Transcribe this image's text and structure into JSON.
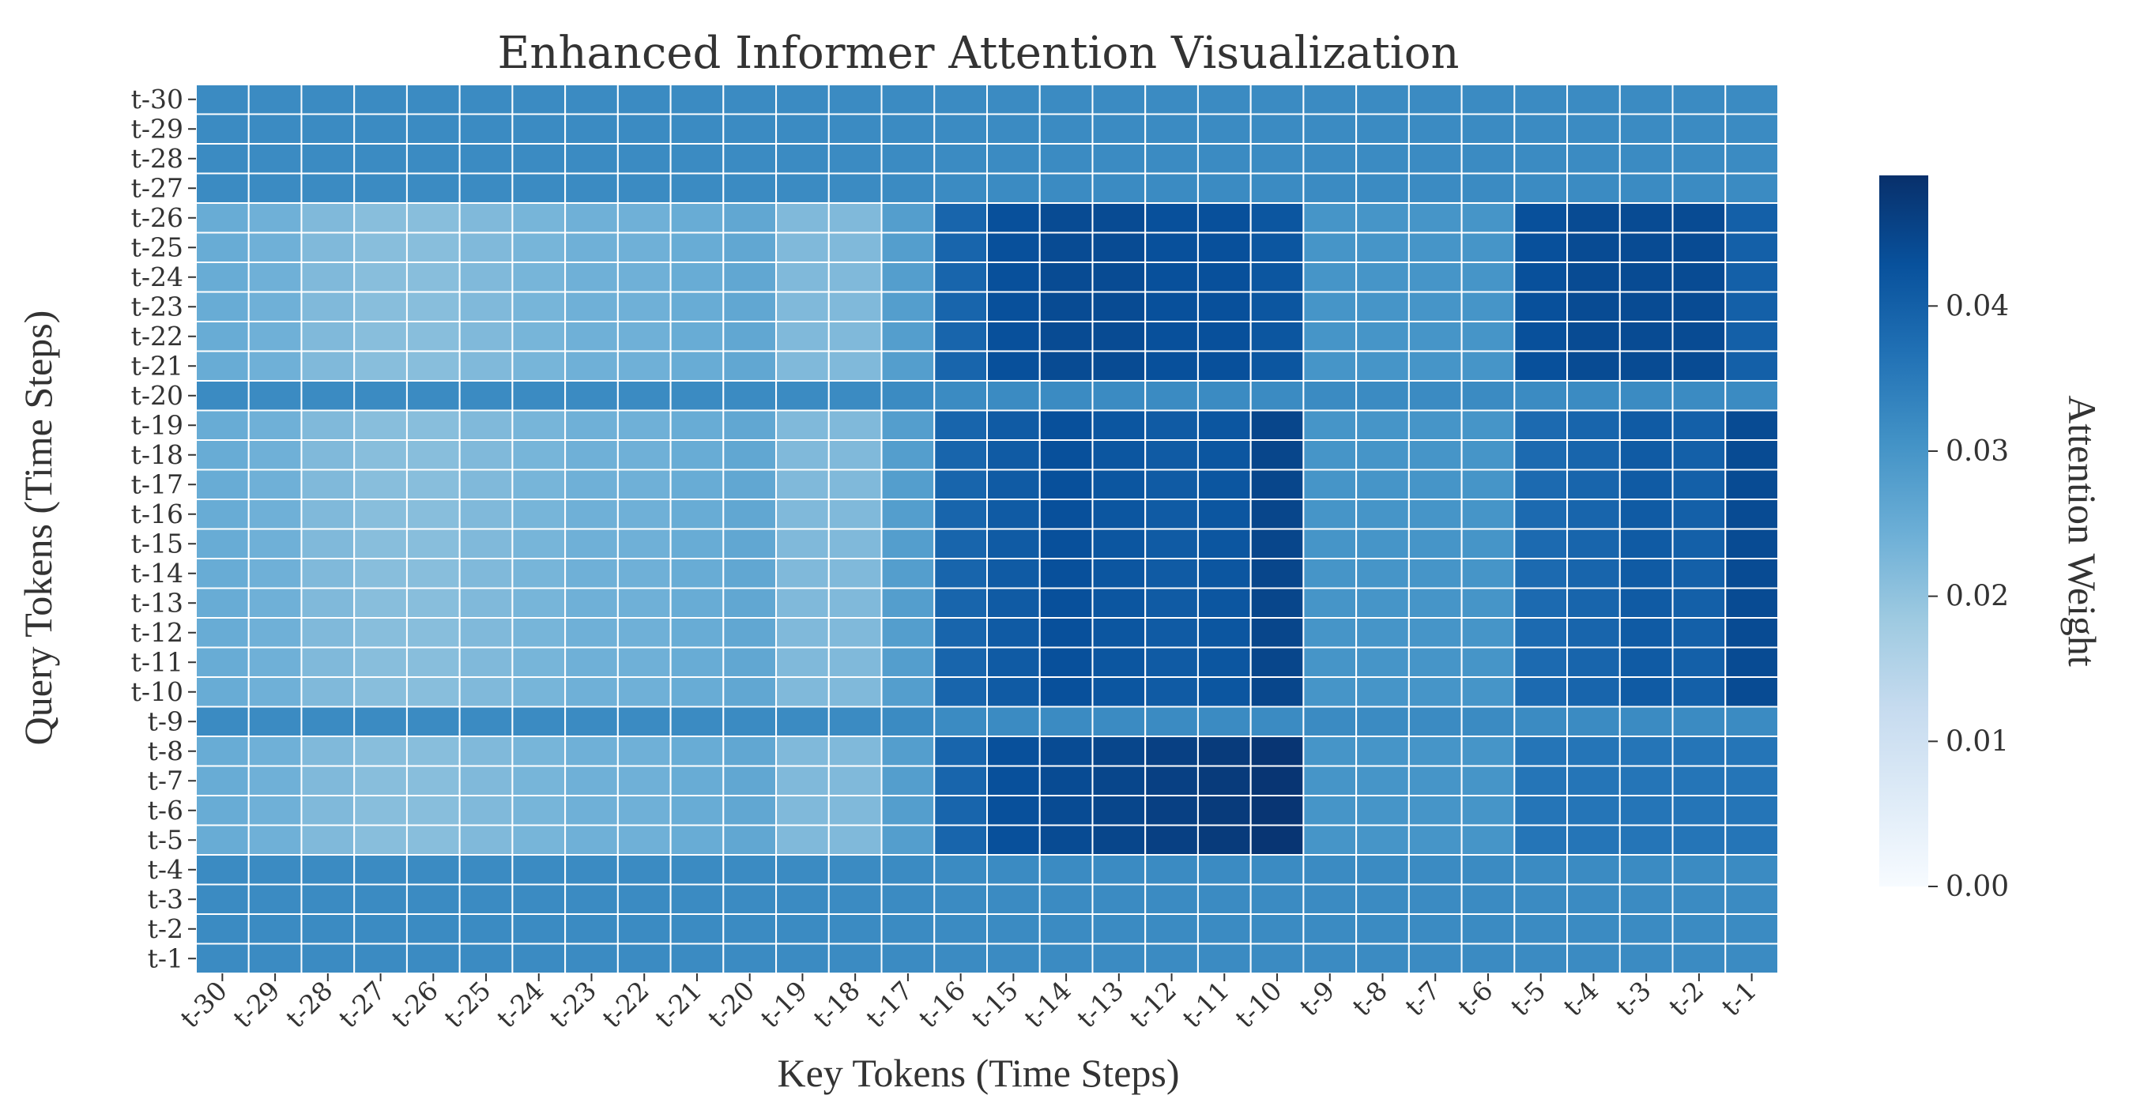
{
  "chart_data": {
    "type": "heatmap",
    "title": "Enhanced Informer Attention Visualization",
    "xlabel": "Key Tokens (Time Steps)",
    "ylabel": "Query Tokens (Time Steps)",
    "x_categories": [
      "t-30",
      "t-29",
      "t-28",
      "t-27",
      "t-26",
      "t-25",
      "t-24",
      "t-23",
      "t-22",
      "t-21",
      "t-20",
      "t-19",
      "t-18",
      "t-17",
      "t-16",
      "t-15",
      "t-14",
      "t-13",
      "t-12",
      "t-11",
      "t-10",
      "t-9",
      "t-8",
      "t-7",
      "t-6",
      "t-5",
      "t-4",
      "t-3",
      "t-2",
      "t-1"
    ],
    "y_categories": [
      "t-30",
      "t-29",
      "t-28",
      "t-27",
      "t-26",
      "t-25",
      "t-24",
      "t-23",
      "t-22",
      "t-21",
      "t-20",
      "t-19",
      "t-18",
      "t-17",
      "t-16",
      "t-15",
      "t-14",
      "t-13",
      "t-12",
      "t-11",
      "t-10",
      "t-9",
      "t-8",
      "t-7",
      "t-6",
      "t-5",
      "t-4",
      "t-3",
      "t-2",
      "t-1"
    ],
    "values": [
      [
        0.032,
        0.032,
        0.032,
        0.032,
        0.032,
        0.032,
        0.032,
        0.032,
        0.032,
        0.032,
        0.032,
        0.032,
        0.032,
        0.032,
        0.032,
        0.032,
        0.032,
        0.032,
        0.032,
        0.032,
        0.032,
        0.032,
        0.032,
        0.032,
        0.032,
        0.032,
        0.032,
        0.032,
        0.032,
        0.032
      ],
      [
        0.032,
        0.032,
        0.032,
        0.032,
        0.032,
        0.032,
        0.032,
        0.032,
        0.032,
        0.032,
        0.032,
        0.032,
        0.032,
        0.032,
        0.032,
        0.032,
        0.032,
        0.032,
        0.032,
        0.032,
        0.032,
        0.032,
        0.032,
        0.032,
        0.032,
        0.032,
        0.032,
        0.032,
        0.032,
        0.032
      ],
      [
        0.032,
        0.032,
        0.032,
        0.032,
        0.032,
        0.032,
        0.032,
        0.032,
        0.032,
        0.032,
        0.032,
        0.032,
        0.032,
        0.032,
        0.032,
        0.032,
        0.032,
        0.032,
        0.032,
        0.032,
        0.032,
        0.032,
        0.032,
        0.032,
        0.032,
        0.032,
        0.032,
        0.032,
        0.032,
        0.032
      ],
      [
        0.032,
        0.032,
        0.032,
        0.032,
        0.032,
        0.032,
        0.032,
        0.032,
        0.032,
        0.032,
        0.032,
        0.032,
        0.032,
        0.032,
        0.032,
        0.032,
        0.032,
        0.032,
        0.032,
        0.032,
        0.032,
        0.032,
        0.032,
        0.032,
        0.032,
        0.032,
        0.032,
        0.032,
        0.032,
        0.032
      ],
      [
        0.025,
        0.024,
        0.022,
        0.021,
        0.021,
        0.022,
        0.023,
        0.024,
        0.024,
        0.025,
        0.026,
        0.022,
        0.022,
        0.028,
        0.039,
        0.043,
        0.044,
        0.044,
        0.043,
        0.043,
        0.042,
        0.03,
        0.03,
        0.03,
        0.03,
        0.043,
        0.044,
        0.044,
        0.044,
        0.04
      ],
      [
        0.025,
        0.024,
        0.022,
        0.021,
        0.021,
        0.022,
        0.023,
        0.024,
        0.024,
        0.025,
        0.026,
        0.022,
        0.022,
        0.028,
        0.039,
        0.043,
        0.044,
        0.044,
        0.043,
        0.043,
        0.042,
        0.03,
        0.03,
        0.03,
        0.03,
        0.043,
        0.044,
        0.044,
        0.044,
        0.04
      ],
      [
        0.025,
        0.024,
        0.022,
        0.021,
        0.021,
        0.022,
        0.023,
        0.024,
        0.024,
        0.025,
        0.026,
        0.022,
        0.022,
        0.028,
        0.039,
        0.043,
        0.044,
        0.044,
        0.043,
        0.043,
        0.042,
        0.03,
        0.03,
        0.03,
        0.03,
        0.043,
        0.044,
        0.044,
        0.044,
        0.04
      ],
      [
        0.025,
        0.024,
        0.022,
        0.021,
        0.021,
        0.022,
        0.023,
        0.024,
        0.024,
        0.025,
        0.026,
        0.022,
        0.022,
        0.028,
        0.039,
        0.043,
        0.044,
        0.044,
        0.043,
        0.043,
        0.042,
        0.03,
        0.03,
        0.03,
        0.03,
        0.043,
        0.044,
        0.044,
        0.044,
        0.04
      ],
      [
        0.025,
        0.024,
        0.022,
        0.021,
        0.021,
        0.022,
        0.023,
        0.024,
        0.024,
        0.025,
        0.026,
        0.022,
        0.022,
        0.028,
        0.039,
        0.043,
        0.044,
        0.044,
        0.043,
        0.043,
        0.042,
        0.03,
        0.03,
        0.03,
        0.03,
        0.043,
        0.044,
        0.044,
        0.044,
        0.04
      ],
      [
        0.025,
        0.024,
        0.022,
        0.021,
        0.021,
        0.022,
        0.023,
        0.024,
        0.024,
        0.025,
        0.026,
        0.022,
        0.022,
        0.028,
        0.039,
        0.043,
        0.044,
        0.044,
        0.043,
        0.043,
        0.042,
        0.03,
        0.03,
        0.03,
        0.03,
        0.043,
        0.044,
        0.044,
        0.044,
        0.04
      ],
      [
        0.032,
        0.032,
        0.032,
        0.032,
        0.032,
        0.032,
        0.032,
        0.032,
        0.032,
        0.032,
        0.032,
        0.032,
        0.032,
        0.032,
        0.032,
        0.032,
        0.032,
        0.032,
        0.032,
        0.032,
        0.032,
        0.032,
        0.032,
        0.032,
        0.032,
        0.032,
        0.032,
        0.032,
        0.032,
        0.032
      ],
      [
        0.025,
        0.024,
        0.022,
        0.021,
        0.021,
        0.022,
        0.023,
        0.024,
        0.024,
        0.025,
        0.026,
        0.022,
        0.022,
        0.028,
        0.039,
        0.041,
        0.043,
        0.042,
        0.041,
        0.042,
        0.045,
        0.03,
        0.03,
        0.03,
        0.03,
        0.038,
        0.039,
        0.041,
        0.04,
        0.044
      ],
      [
        0.025,
        0.024,
        0.022,
        0.021,
        0.021,
        0.022,
        0.023,
        0.024,
        0.024,
        0.025,
        0.026,
        0.022,
        0.022,
        0.028,
        0.039,
        0.041,
        0.043,
        0.042,
        0.041,
        0.042,
        0.045,
        0.03,
        0.03,
        0.03,
        0.03,
        0.038,
        0.039,
        0.041,
        0.04,
        0.044
      ],
      [
        0.025,
        0.024,
        0.022,
        0.021,
        0.021,
        0.022,
        0.023,
        0.024,
        0.024,
        0.025,
        0.026,
        0.022,
        0.022,
        0.028,
        0.039,
        0.041,
        0.043,
        0.042,
        0.041,
        0.042,
        0.045,
        0.03,
        0.03,
        0.03,
        0.03,
        0.038,
        0.039,
        0.041,
        0.04,
        0.044
      ],
      [
        0.025,
        0.024,
        0.022,
        0.021,
        0.021,
        0.022,
        0.023,
        0.024,
        0.024,
        0.025,
        0.026,
        0.022,
        0.022,
        0.028,
        0.039,
        0.041,
        0.043,
        0.042,
        0.041,
        0.042,
        0.045,
        0.03,
        0.03,
        0.03,
        0.03,
        0.038,
        0.039,
        0.041,
        0.04,
        0.044
      ],
      [
        0.025,
        0.024,
        0.022,
        0.021,
        0.021,
        0.022,
        0.023,
        0.024,
        0.024,
        0.025,
        0.026,
        0.022,
        0.022,
        0.028,
        0.039,
        0.041,
        0.043,
        0.042,
        0.041,
        0.042,
        0.045,
        0.03,
        0.03,
        0.03,
        0.03,
        0.038,
        0.039,
        0.041,
        0.04,
        0.044
      ],
      [
        0.025,
        0.024,
        0.022,
        0.021,
        0.021,
        0.022,
        0.023,
        0.024,
        0.024,
        0.025,
        0.026,
        0.022,
        0.022,
        0.028,
        0.039,
        0.041,
        0.043,
        0.042,
        0.041,
        0.042,
        0.045,
        0.03,
        0.03,
        0.03,
        0.03,
        0.038,
        0.039,
        0.041,
        0.04,
        0.044
      ],
      [
        0.025,
        0.024,
        0.022,
        0.021,
        0.021,
        0.022,
        0.023,
        0.024,
        0.024,
        0.025,
        0.026,
        0.022,
        0.022,
        0.028,
        0.039,
        0.041,
        0.043,
        0.042,
        0.041,
        0.042,
        0.045,
        0.03,
        0.03,
        0.03,
        0.03,
        0.038,
        0.039,
        0.041,
        0.04,
        0.044
      ],
      [
        0.025,
        0.024,
        0.022,
        0.021,
        0.021,
        0.022,
        0.023,
        0.024,
        0.024,
        0.025,
        0.026,
        0.022,
        0.022,
        0.028,
        0.039,
        0.041,
        0.043,
        0.042,
        0.041,
        0.042,
        0.045,
        0.03,
        0.03,
        0.03,
        0.03,
        0.038,
        0.039,
        0.041,
        0.04,
        0.044
      ],
      [
        0.025,
        0.024,
        0.022,
        0.021,
        0.021,
        0.022,
        0.023,
        0.024,
        0.024,
        0.025,
        0.026,
        0.022,
        0.022,
        0.028,
        0.039,
        0.041,
        0.043,
        0.042,
        0.041,
        0.042,
        0.045,
        0.03,
        0.03,
        0.03,
        0.03,
        0.038,
        0.039,
        0.041,
        0.04,
        0.044
      ],
      [
        0.025,
        0.024,
        0.022,
        0.021,
        0.021,
        0.022,
        0.023,
        0.024,
        0.024,
        0.025,
        0.026,
        0.022,
        0.022,
        0.028,
        0.039,
        0.041,
        0.043,
        0.042,
        0.041,
        0.042,
        0.045,
        0.03,
        0.03,
        0.03,
        0.03,
        0.038,
        0.039,
        0.041,
        0.04,
        0.044
      ],
      [
        0.032,
        0.032,
        0.032,
        0.032,
        0.032,
        0.032,
        0.032,
        0.032,
        0.032,
        0.032,
        0.032,
        0.032,
        0.032,
        0.032,
        0.032,
        0.032,
        0.032,
        0.032,
        0.032,
        0.032,
        0.032,
        0.032,
        0.032,
        0.032,
        0.032,
        0.032,
        0.032,
        0.032,
        0.032,
        0.032
      ],
      [
        0.025,
        0.024,
        0.022,
        0.021,
        0.021,
        0.022,
        0.023,
        0.024,
        0.024,
        0.025,
        0.026,
        0.022,
        0.022,
        0.028,
        0.039,
        0.043,
        0.044,
        0.045,
        0.046,
        0.047,
        0.048,
        0.03,
        0.03,
        0.03,
        0.03,
        0.036,
        0.036,
        0.036,
        0.036,
        0.036
      ],
      [
        0.025,
        0.024,
        0.022,
        0.021,
        0.021,
        0.022,
        0.023,
        0.024,
        0.024,
        0.025,
        0.026,
        0.022,
        0.022,
        0.028,
        0.039,
        0.043,
        0.044,
        0.045,
        0.046,
        0.047,
        0.048,
        0.03,
        0.03,
        0.03,
        0.03,
        0.036,
        0.036,
        0.036,
        0.036,
        0.036
      ],
      [
        0.025,
        0.024,
        0.022,
        0.021,
        0.021,
        0.022,
        0.023,
        0.024,
        0.024,
        0.025,
        0.026,
        0.022,
        0.022,
        0.028,
        0.039,
        0.043,
        0.044,
        0.045,
        0.046,
        0.047,
        0.048,
        0.03,
        0.03,
        0.03,
        0.03,
        0.036,
        0.036,
        0.036,
        0.036,
        0.036
      ],
      [
        0.025,
        0.024,
        0.022,
        0.021,
        0.021,
        0.022,
        0.023,
        0.024,
        0.024,
        0.025,
        0.026,
        0.022,
        0.022,
        0.028,
        0.039,
        0.043,
        0.044,
        0.045,
        0.046,
        0.047,
        0.048,
        0.03,
        0.03,
        0.03,
        0.03,
        0.036,
        0.036,
        0.036,
        0.036,
        0.036
      ],
      [
        0.032,
        0.032,
        0.032,
        0.032,
        0.032,
        0.032,
        0.032,
        0.032,
        0.032,
        0.032,
        0.032,
        0.032,
        0.032,
        0.032,
        0.032,
        0.032,
        0.032,
        0.032,
        0.032,
        0.032,
        0.032,
        0.032,
        0.032,
        0.032,
        0.032,
        0.032,
        0.032,
        0.032,
        0.032,
        0.032
      ],
      [
        0.032,
        0.032,
        0.032,
        0.032,
        0.032,
        0.032,
        0.032,
        0.032,
        0.032,
        0.032,
        0.032,
        0.032,
        0.032,
        0.032,
        0.032,
        0.032,
        0.032,
        0.032,
        0.032,
        0.032,
        0.032,
        0.032,
        0.032,
        0.032,
        0.032,
        0.032,
        0.032,
        0.032,
        0.032,
        0.032
      ],
      [
        0.032,
        0.032,
        0.032,
        0.032,
        0.032,
        0.032,
        0.032,
        0.032,
        0.032,
        0.032,
        0.032,
        0.032,
        0.032,
        0.032,
        0.032,
        0.032,
        0.032,
        0.032,
        0.032,
        0.032,
        0.032,
        0.032,
        0.032,
        0.032,
        0.032,
        0.032,
        0.032,
        0.032,
        0.032,
        0.032
      ],
      [
        0.032,
        0.032,
        0.032,
        0.032,
        0.032,
        0.032,
        0.032,
        0.032,
        0.032,
        0.032,
        0.032,
        0.032,
        0.032,
        0.032,
        0.032,
        0.032,
        0.032,
        0.032,
        0.032,
        0.032,
        0.032,
        0.032,
        0.032,
        0.032,
        0.032,
        0.032,
        0.032,
        0.032,
        0.032,
        0.032
      ]
    ],
    "colorbar": {
      "label": "Attention Weight",
      "range": [
        0,
        0.049
      ],
      "ticks": [
        0.0,
        0.01,
        0.02,
        0.03,
        0.04
      ],
      "tick_labels": [
        "0.00",
        "0.01",
        "0.02",
        "0.03",
        "0.04"
      ],
      "colormap": "Blues",
      "colors": [
        "#f7fbff",
        "#deebf7",
        "#c6dbef",
        "#9ecae1",
        "#6baed6",
        "#4292c6",
        "#2171b5",
        "#08519c",
        "#08306b"
      ]
    },
    "grid": "white cell borders",
    "legend": "none"
  }
}
